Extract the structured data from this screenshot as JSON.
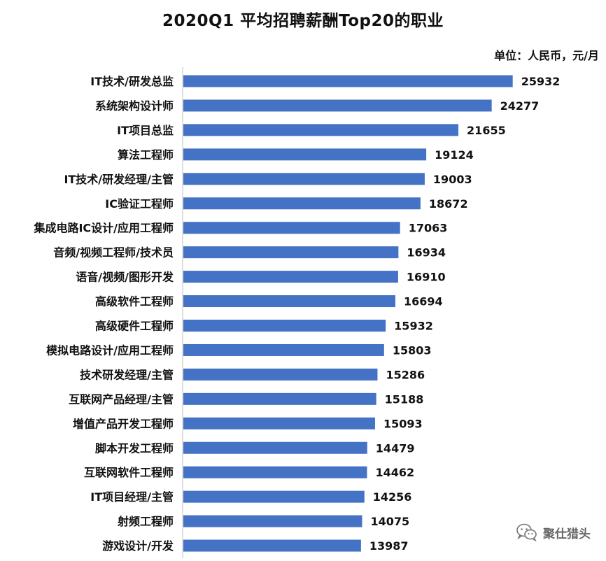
{
  "chart_data": {
    "type": "bar",
    "orientation": "horizontal",
    "title": "2020Q1 平均招聘薪酬Top20的职业",
    "unit": "单位：人民币，元/月",
    "categories": [
      "IT技术/研发总监",
      "系统架构设计师",
      "IT项目总监",
      "算法工程师",
      "IT技术/研发经理/主管",
      "IC验证工程师",
      "集成电路IC设计/应用工程师",
      "音频/视频工程师/技术员",
      "语音/视频/图形开发",
      "高级软件工程师",
      "高级硬件工程师",
      "模拟电路设计/应用工程师",
      "技术研发经理/主管",
      "互联网产品经理/主管",
      "增值产品开发工程师",
      "脚本开发工程师",
      "互联网软件工程师",
      "IT项目经理/主管",
      "射频工程师",
      "游戏设计/开发"
    ],
    "values": [
      25932,
      24277,
      21655,
      19124,
      19003,
      18672,
      17063,
      16934,
      16910,
      16694,
      15932,
      15803,
      15286,
      15188,
      15093,
      14479,
      14462,
      14256,
      14075,
      13987
    ],
    "xlim": [
      0,
      26500
    ],
    "grid": false,
    "legend": "none",
    "bar_color": "#4472C4"
  },
  "watermark": {
    "text": "聚仕猎头",
    "icon": "wechat-icon"
  }
}
